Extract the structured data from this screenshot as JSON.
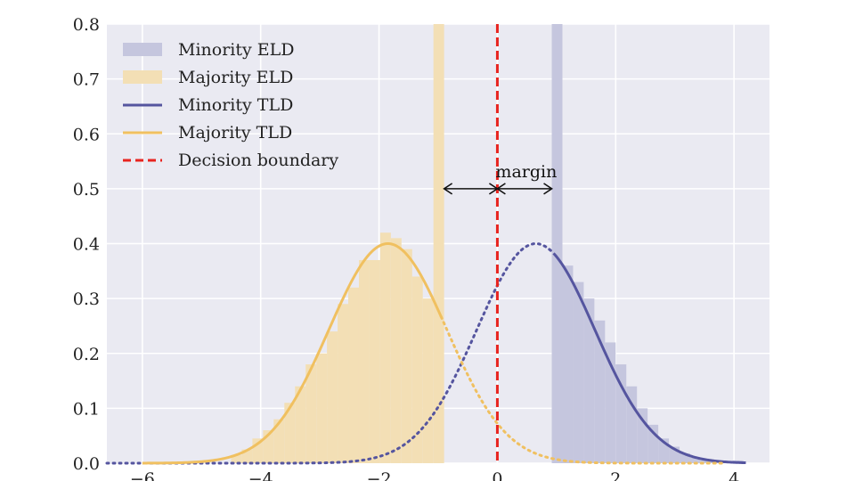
{
  "chart_data": {
    "type": "bar",
    "title": "",
    "xlabel": "",
    "ylabel": "",
    "xlim": [
      -6.6,
      4.6
    ],
    "ylim": [
      0,
      0.8
    ],
    "grid": true,
    "legend_placement": "top-left",
    "x_ticks": [
      {
        "value": -6,
        "label": "−6"
      },
      {
        "value": -4,
        "label": "−4"
      },
      {
        "value": -2,
        "label": "−2"
      },
      {
        "value": 0,
        "label": "0"
      },
      {
        "value": 2,
        "label": "2"
      },
      {
        "value": 4,
        "label": "4"
      }
    ],
    "y_ticks": [
      {
        "value": 0.0,
        "label": "0.0"
      },
      {
        "value": 0.1,
        "label": "0.1"
      },
      {
        "value": 0.2,
        "label": "0.2"
      },
      {
        "value": 0.3,
        "label": "0.3"
      },
      {
        "value": 0.4,
        "label": "0.4"
      },
      {
        "value": 0.5,
        "label": "0.5"
      },
      {
        "value": 0.6,
        "label": "0.6"
      },
      {
        "value": 0.7,
        "label": "0.7"
      },
      {
        "value": 0.8,
        "label": "0.8"
      }
    ],
    "histograms": [
      {
        "name": "Minority ELD",
        "color": "#c5c6de",
        "bin_width": 0.18,
        "bins": [
          {
            "left": 0.92,
            "height": 0.8
          },
          {
            "left": 1.1,
            "height": 0.36
          },
          {
            "left": 1.28,
            "height": 0.33
          },
          {
            "left": 1.46,
            "height": 0.3
          },
          {
            "left": 1.64,
            "height": 0.26
          },
          {
            "left": 1.82,
            "height": 0.22
          },
          {
            "left": 2.0,
            "height": 0.18
          },
          {
            "left": 2.18,
            "height": 0.14
          },
          {
            "left": 2.36,
            "height": 0.1
          },
          {
            "left": 2.54,
            "height": 0.07
          },
          {
            "left": 2.72,
            "height": 0.045
          },
          {
            "left": 2.9,
            "height": 0.03
          },
          {
            "left": 3.08,
            "height": 0.018
          },
          {
            "left": 3.26,
            "height": 0.01
          },
          {
            "left": 3.44,
            "height": 0.006
          },
          {
            "left": 3.62,
            "height": 0.004
          },
          {
            "left": 3.8,
            "height": 0.003
          },
          {
            "left": 3.98,
            "height": 0.005
          }
        ]
      },
      {
        "name": "Majority ELD",
        "color": "#f3dfb5",
        "bin_width": 0.18,
        "bins": [
          {
            "left": -4.5,
            "height": 0.015
          },
          {
            "left": -4.32,
            "height": 0.025
          },
          {
            "left": -4.14,
            "height": 0.045
          },
          {
            "left": -3.96,
            "height": 0.06
          },
          {
            "left": -3.78,
            "height": 0.08
          },
          {
            "left": -3.6,
            "height": 0.11
          },
          {
            "left": -3.42,
            "height": 0.14
          },
          {
            "left": -3.24,
            "height": 0.18
          },
          {
            "left": -3.06,
            "height": 0.2
          },
          {
            "left": -2.88,
            "height": 0.24
          },
          {
            "left": -2.7,
            "height": 0.29
          },
          {
            "left": -2.52,
            "height": 0.32
          },
          {
            "left": -2.34,
            "height": 0.37
          },
          {
            "left": -2.16,
            "height": 0.37
          },
          {
            "left": -1.98,
            "height": 0.42
          },
          {
            "left": -1.8,
            "height": 0.41
          },
          {
            "left": -1.62,
            "height": 0.39
          },
          {
            "left": -1.44,
            "height": 0.34
          },
          {
            "left": -1.26,
            "height": 0.3
          },
          {
            "left": -1.08,
            "height": 0.8
          }
        ]
      }
    ],
    "curves": [
      {
        "name": "Minority TLD",
        "color": "#55559f",
        "mean": 0.65,
        "sd": 1.0,
        "scale": 0.4,
        "solid_from": 0.95,
        "x_start": -6.6,
        "x_end": 4.2
      },
      {
        "name": "Majority TLD",
        "color": "#f0c060",
        "mean": -1.85,
        "sd": 1.0,
        "scale": 0.4,
        "solid_to": -0.95,
        "x_start": -6.0,
        "x_end": 3.8
      }
    ],
    "decision_boundary": {
      "name": "Decision boundary",
      "x": 0,
      "color": "#e8241f"
    },
    "margin_annotation": {
      "text": "margin",
      "y": 0.5,
      "left_x": -0.9,
      "right_x": 0.92,
      "center_x": 0
    }
  }
}
